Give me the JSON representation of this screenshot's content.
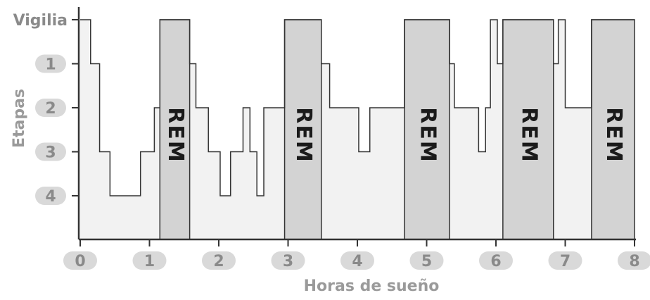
{
  "chart_data": {
    "type": "line",
    "title": "",
    "xlabel": "Horas de sueño",
    "ylabel": "Etapas",
    "xlim": [
      0,
      8
    ],
    "x_ticks": [
      "0",
      "1",
      "2",
      "3",
      "4",
      "5",
      "6",
      "7",
      "8"
    ],
    "y_categories": [
      "Vigilia",
      "1",
      "2",
      "3",
      "4"
    ],
    "y_values_numeric": [
      0,
      1,
      2,
      3,
      4
    ],
    "colors": {
      "area_fill": "#f2f2f2",
      "rem_fill": "#d3d3d3",
      "line": "#333333",
      "axis": "#333333",
      "tick_pill": "#d9d9d9",
      "tick_text": "#8a8a8a"
    },
    "rem_label": "REM",
    "rem_periods": [
      {
        "start": 1.15,
        "end": 1.58,
        "label": "REM"
      },
      {
        "start": 2.95,
        "end": 3.48,
        "label": "REM"
      },
      {
        "start": 4.68,
        "end": 5.33,
        "label": "REM"
      },
      {
        "start": 6.1,
        "end": 6.83,
        "label": "REM"
      },
      {
        "start": 7.38,
        "end": 8.0,
        "label": "REM"
      }
    ],
    "stage_series": [
      {
        "x": 0.0,
        "y": 0
      },
      {
        "x": 0.15,
        "y": 1
      },
      {
        "x": 0.28,
        "y": 3
      },
      {
        "x": 0.43,
        "y": 4
      },
      {
        "x": 0.87,
        "y": 3
      },
      {
        "x": 1.07,
        "y": 2
      },
      {
        "x": 1.15,
        "y": 0
      },
      {
        "x": 1.58,
        "y": 1
      },
      {
        "x": 1.67,
        "y": 2
      },
      {
        "x": 1.85,
        "y": 3
      },
      {
        "x": 2.02,
        "y": 4
      },
      {
        "x": 2.17,
        "y": 3
      },
      {
        "x": 2.35,
        "y": 2
      },
      {
        "x": 2.45,
        "y": 3
      },
      {
        "x": 2.55,
        "y": 4
      },
      {
        "x": 2.65,
        "y": 2
      },
      {
        "x": 2.95,
        "y": 0
      },
      {
        "x": 3.48,
        "y": 1
      },
      {
        "x": 3.6,
        "y": 2
      },
      {
        "x": 4.02,
        "y": 3
      },
      {
        "x": 4.18,
        "y": 2
      },
      {
        "x": 4.68,
        "y": 0
      },
      {
        "x": 5.33,
        "y": 1
      },
      {
        "x": 5.4,
        "y": 2
      },
      {
        "x": 5.75,
        "y": 3
      },
      {
        "x": 5.85,
        "y": 2
      },
      {
        "x": 5.92,
        "y": 0
      },
      {
        "x": 6.02,
        "y": 1
      },
      {
        "x": 6.1,
        "y": 0
      },
      {
        "x": 6.83,
        "y": 1
      },
      {
        "x": 6.9,
        "y": 0
      },
      {
        "x": 7.0,
        "y": 2
      },
      {
        "x": 7.38,
        "y": 0
      },
      {
        "x": 8.0,
        "y": 0
      }
    ]
  }
}
